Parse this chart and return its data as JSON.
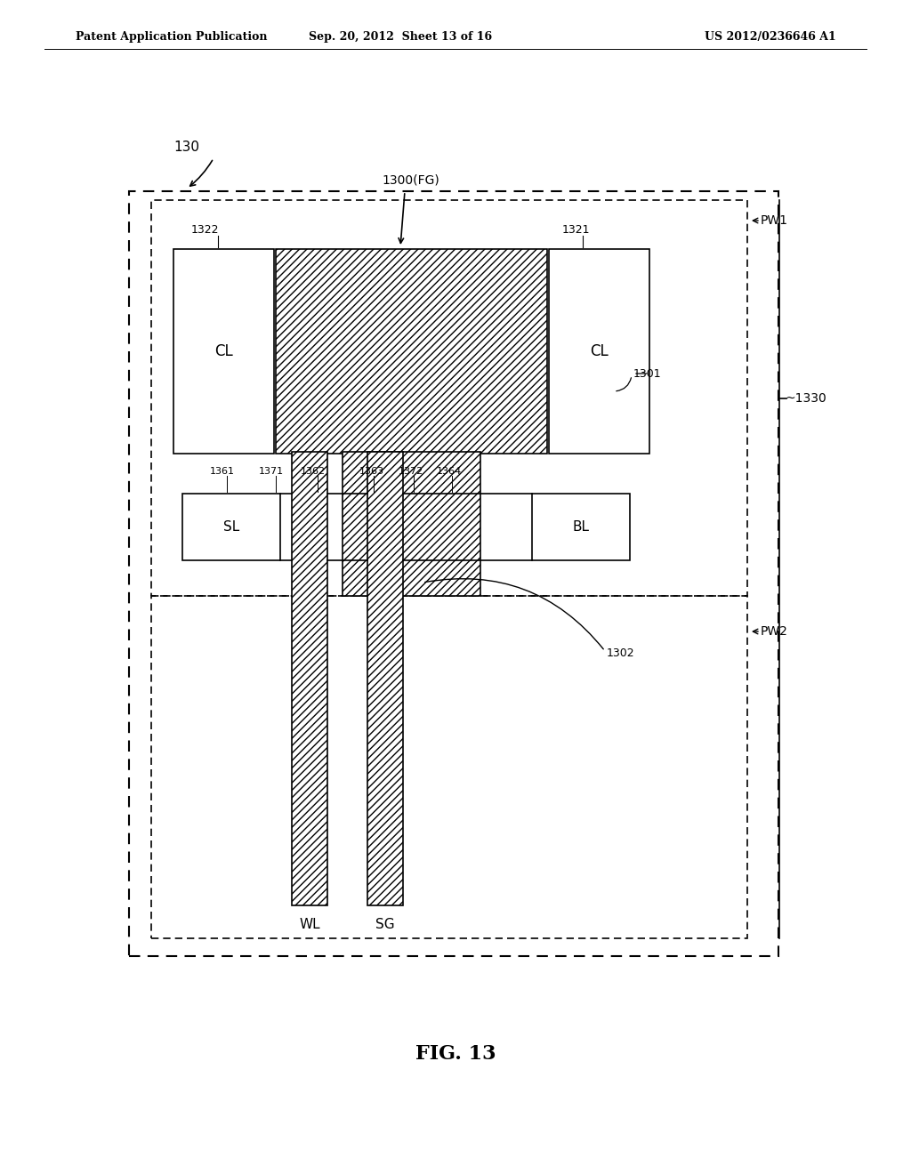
{
  "bg_color": "#ffffff",
  "header_left": "Patent Application Publication",
  "header_mid": "Sep. 20, 2012  Sheet 13 of 16",
  "header_right": "US 2012/0236646 A1",
  "fig_label": "FIG. 13",
  "label_130": "130",
  "label_1300FG": "1300(FG)",
  "label_PW1": "PW1",
  "label_PW2": "PW2",
  "label_1330": "~1330",
  "label_1301": "1301",
  "label_1302": "1302",
  "label_1321": "1321",
  "label_1322": "1322",
  "label_1361": "1361",
  "label_1362": "1362",
  "label_1363": "1363",
  "label_1364": "1364",
  "label_1371": "1371",
  "label_1372": "1372",
  "label_CL_left": "CL",
  "label_CL_right": "CL",
  "label_SL": "SL",
  "label_BL": "BL",
  "label_WL": "WL",
  "label_SG": "SG"
}
